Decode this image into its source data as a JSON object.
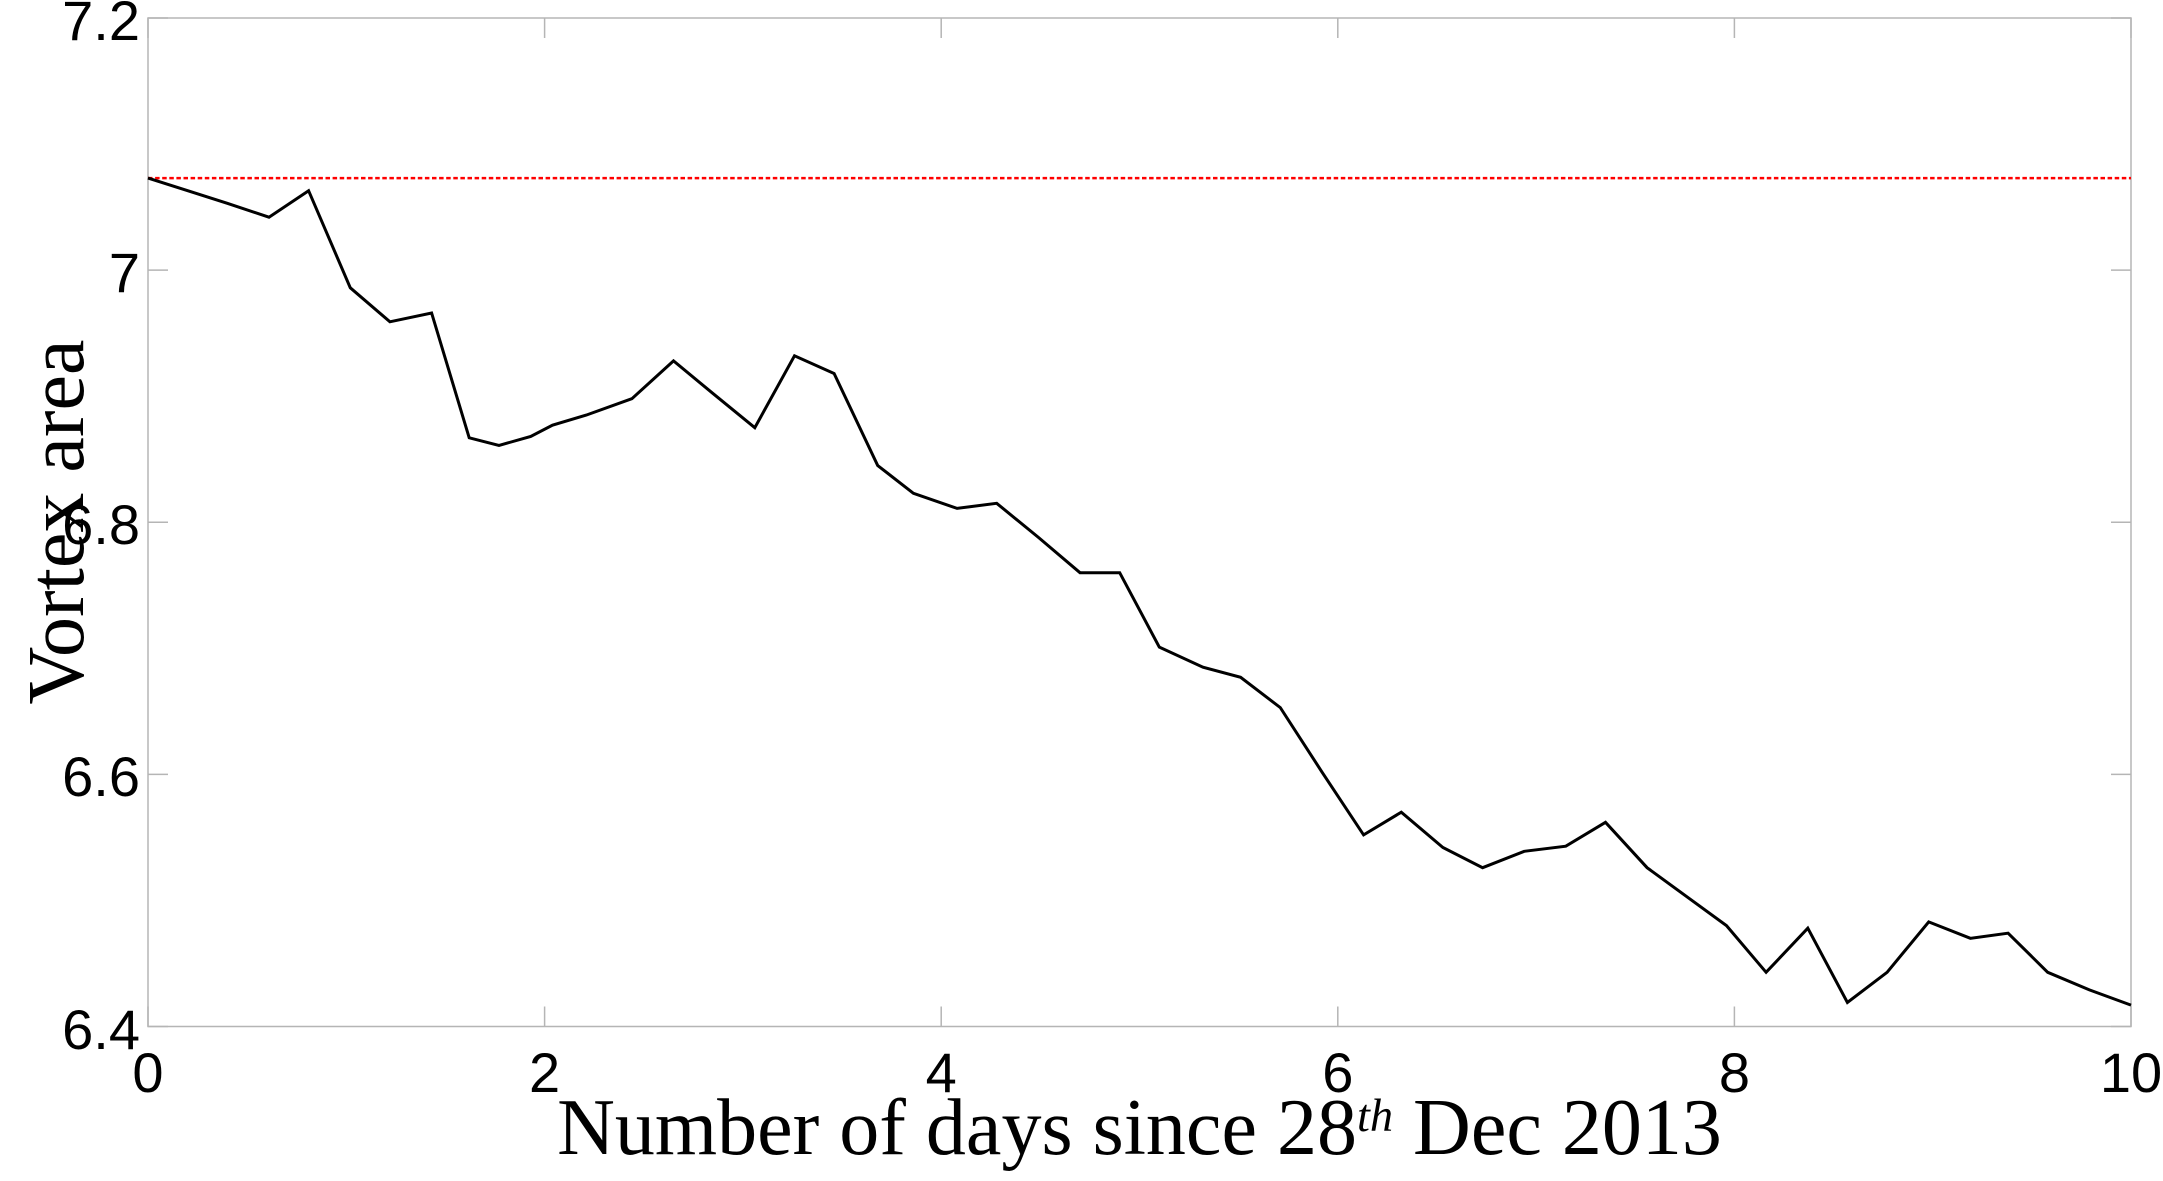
{
  "figure": {
    "background": "#ffffff",
    "axis_color": "#b5b5b5",
    "text_color": "#000000"
  },
  "chart_data": {
    "type": "line",
    "title": "",
    "xlabel": "Number of days since 28th Dec 2013",
    "xlabel_parts": {
      "prefix": "Number of days since 28",
      "superscript": "th",
      "suffix": " Dec 2013"
    },
    "ylabel": "Vortex area",
    "xlim": [
      0,
      10
    ],
    "ylim": [
      6.4,
      7.2
    ],
    "grid": false,
    "legend": "none",
    "axis_color": "#b5b5b5",
    "xticks": {
      "values": [
        0,
        2,
        4,
        6,
        8,
        10
      ],
      "labels": [
        "0",
        "2",
        "4",
        "6",
        "8",
        "10"
      ]
    },
    "yticks": {
      "values": [
        6.4,
        6.6,
        6.8,
        7.0,
        7.2
      ],
      "labels": [
        "6.4",
        "6.6",
        "6.8",
        "7",
        "7.2"
      ]
    },
    "series": [
      {
        "name": "vortex-area",
        "color": "#000000",
        "line_width": 3,
        "x": [
          0.0,
          0.2,
          0.4,
          0.61,
          0.81,
          1.02,
          1.22,
          1.43,
          1.62,
          1.77,
          1.93,
          2.04,
          2.21,
          2.44,
          2.65,
          2.85,
          3.06,
          3.26,
          3.46,
          3.68,
          3.86,
          4.08,
          4.28,
          4.49,
          4.7,
          4.9,
          5.1,
          5.32,
          5.51,
          5.71,
          5.92,
          6.13,
          6.32,
          6.53,
          6.73,
          6.94,
          7.15,
          7.35,
          7.56,
          7.76,
          7.96,
          8.16,
          8.37,
          8.57,
          8.77,
          8.98,
          9.19,
          9.38,
          9.58,
          9.79,
          10.0
        ],
        "y": [
          7.073,
          7.063,
          7.053,
          7.042,
          7.063,
          6.986,
          6.959,
          6.966,
          6.867,
          6.861,
          6.868,
          6.877,
          6.885,
          6.898,
          6.928,
          6.902,
          6.875,
          6.932,
          6.918,
          6.845,
          6.823,
          6.811,
          6.815,
          6.788,
          6.76,
          6.76,
          6.701,
          6.685,
          6.677,
          6.653,
          6.602,
          6.552,
          6.57,
          6.542,
          6.526,
          6.539,
          6.543,
          6.562,
          6.526,
          6.503,
          6.48,
          6.443,
          6.478,
          6.419,
          6.443,
          6.483,
          6.47,
          6.474,
          6.443,
          6.429,
          6.417
        ]
      }
    ],
    "reference_line": {
      "value": 7.073,
      "color": "#ff0000",
      "style": "dotted",
      "line_width": 2.5
    }
  }
}
